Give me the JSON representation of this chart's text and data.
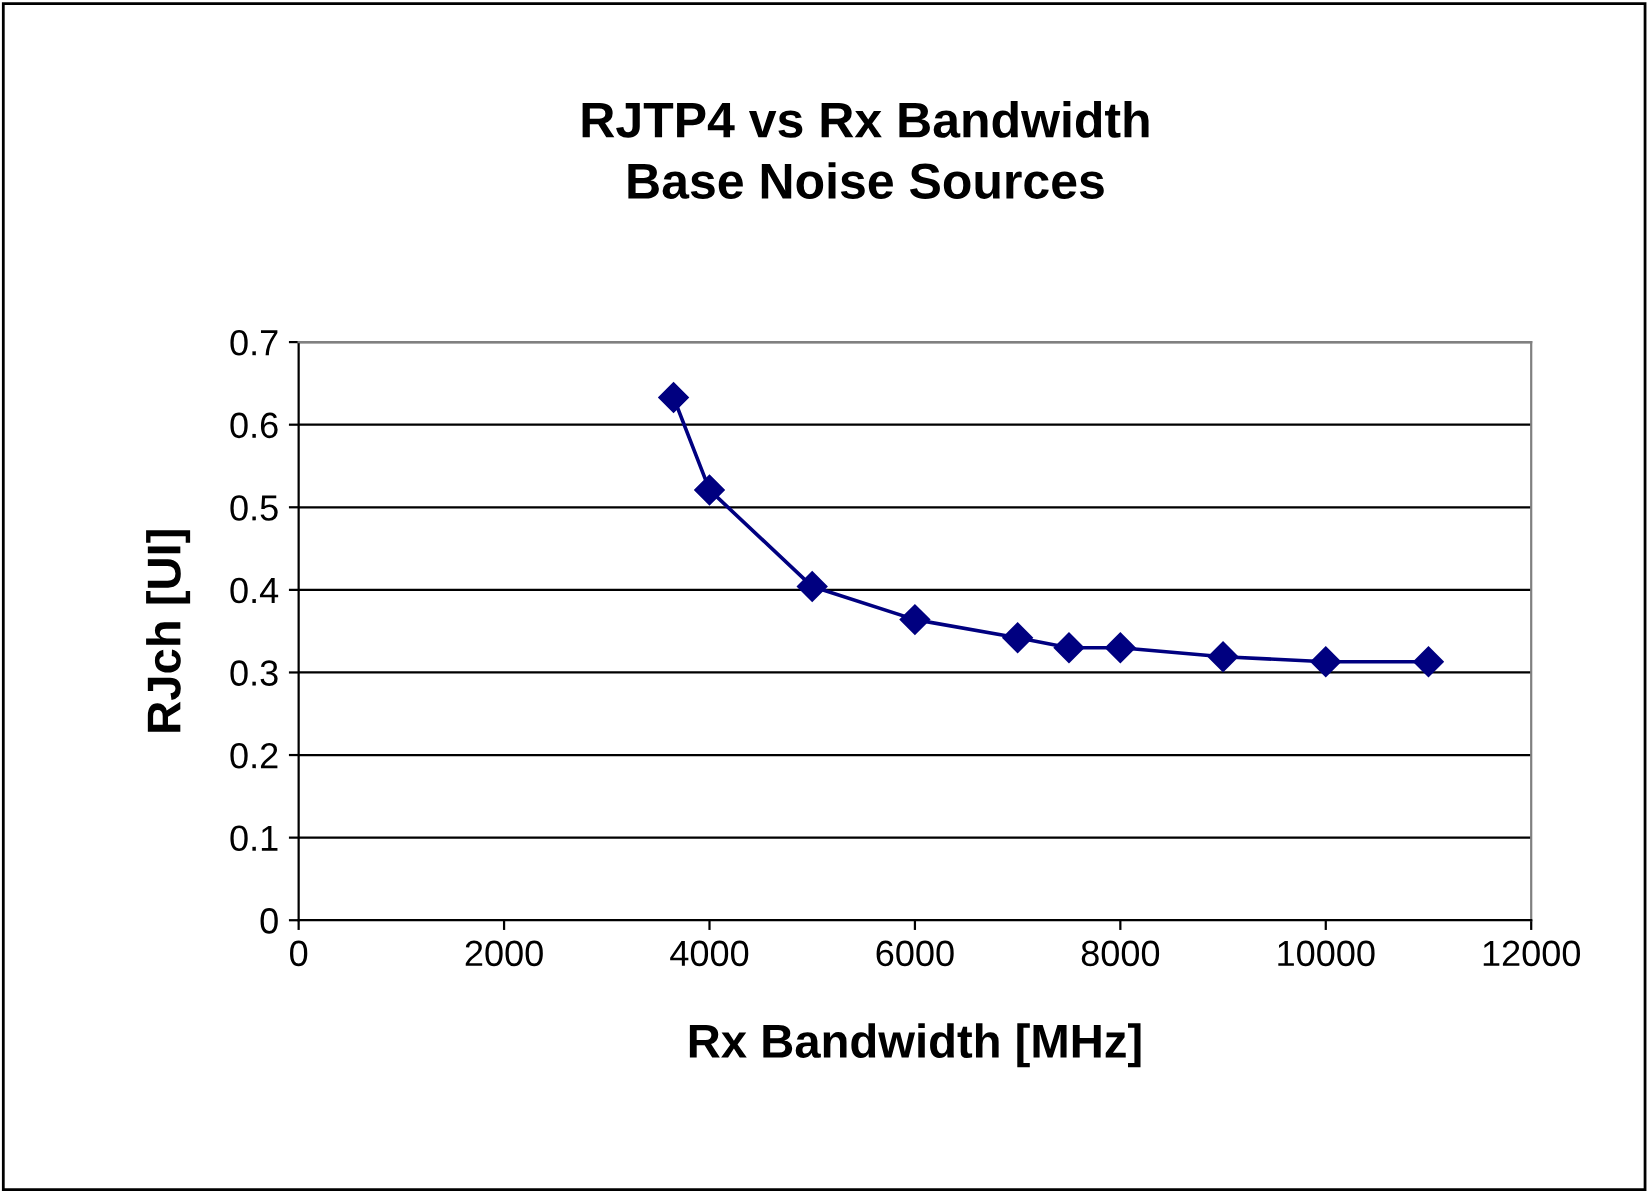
{
  "chart_data": {
    "type": "line",
    "title": "RJTP4 vs Rx Bandwidth\nBase Noise Sources",
    "xlabel": "Rx Bandwidth [MHz]",
    "ylabel": "RJch [UI]",
    "x": [
      3650,
      4000,
      5000,
      6000,
      7000,
      7500,
      8000,
      9000,
      10000,
      11000
    ],
    "series": [
      {
        "color": "#000080",
        "values": [
          0.633,
          0.521,
          0.404,
          0.364,
          0.342,
          0.33,
          0.33,
          0.319,
          0.313,
          0.313
        ]
      }
    ],
    "xlim": [
      0,
      12000
    ],
    "xticks": [
      0,
      2000,
      4000,
      6000,
      8000,
      10000,
      12000
    ],
    "ylim": [
      0,
      0.7
    ],
    "yticks": [
      0,
      0.1,
      0.2,
      0.3,
      0.4,
      0.5,
      0.6,
      0.7
    ],
    "grid": "y",
    "marker": "diamond",
    "line_style": "solid",
    "legend": false
  }
}
